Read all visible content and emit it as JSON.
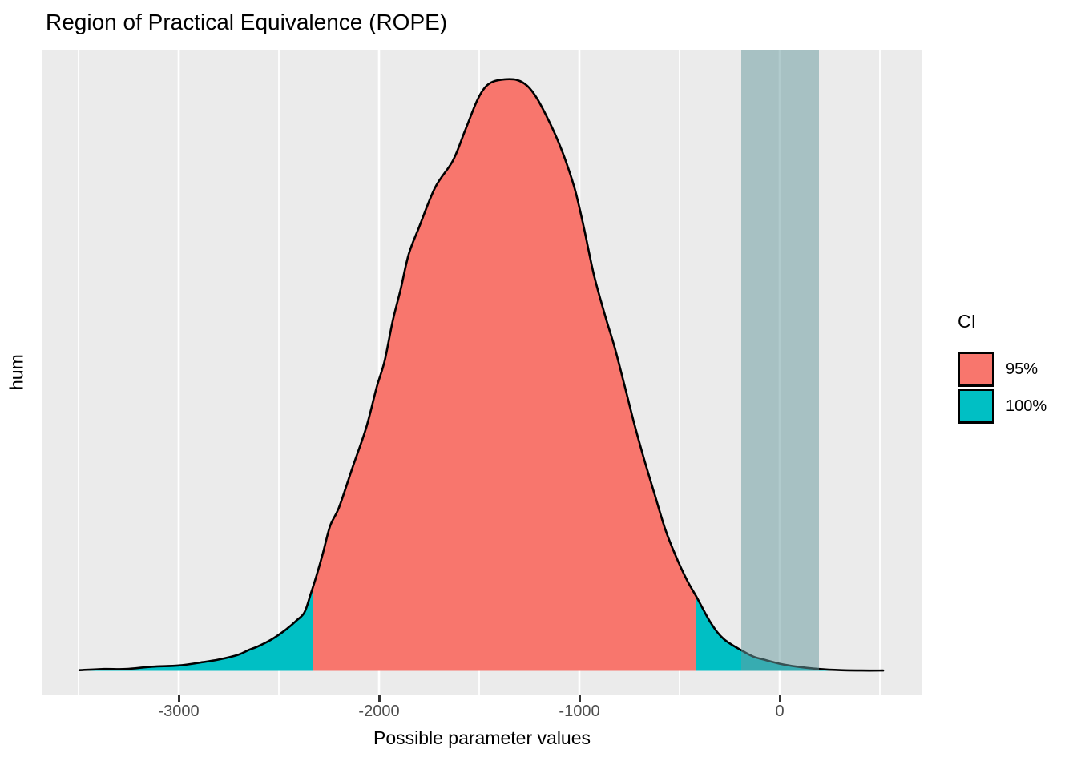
{
  "figure": {
    "background": "#FFFFFF"
  },
  "axis": {
    "tick_color": "#333333",
    "tick_label_color": "#4D4D4D"
  },
  "chart_data": {
    "type": "density",
    "title": "Region of Practical Equivalence (ROPE)",
    "xlabel": "Possible parameter values",
    "ylabel": "hum",
    "x_ticks": [
      -3000,
      -2000,
      -1000,
      0
    ],
    "x_minor_ticks": [
      -3500,
      -2500,
      -1500,
      -500,
      500
    ],
    "xlim": [
      -3684,
      712
    ],
    "density_ylim": [
      -0.04,
      1.05
    ],
    "grid": "vertical white gridlines only, gray panel background",
    "panel_bg": "#EBEBEB",
    "gridline_color": "#FFFFFF",
    "curve_color": "#000000",
    "ci_95_range": [
      -2332,
      -416
    ],
    "ci_100_range": [
      -3496,
      516
    ],
    "rope": {
      "from": -192,
      "to": 196,
      "fill": "#699BA0",
      "opacity": 0.52
    },
    "legend": {
      "title": "CI",
      "position": "right",
      "entries": [
        {
          "label": "95%",
          "color": "#F8766D"
        },
        {
          "label": "100%",
          "color": "#00BFC4"
        }
      ]
    },
    "series": [
      {
        "name": "posterior density (normalized, peak = 1)",
        "points": [
          [
            -3496,
            0.001
          ],
          [
            -3372,
            0.003
          ],
          [
            -3264,
            0.003
          ],
          [
            -3132,
            0.007
          ],
          [
            -3000,
            0.009
          ],
          [
            -2892,
            0.014
          ],
          [
            -2800,
            0.019
          ],
          [
            -2704,
            0.027
          ],
          [
            -2652,
            0.035
          ],
          [
            -2600,
            0.042
          ],
          [
            -2532,
            0.054
          ],
          [
            -2464,
            0.07
          ],
          [
            -2412,
            0.085
          ],
          [
            -2372,
            0.099
          ],
          [
            -2340,
            0.131
          ],
          [
            -2312,
            0.161
          ],
          [
            -2280,
            0.199
          ],
          [
            -2244,
            0.245
          ],
          [
            -2200,
            0.276
          ],
          [
            -2132,
            0.344
          ],
          [
            -2064,
            0.411
          ],
          [
            -2012,
            0.479
          ],
          [
            -1972,
            0.524
          ],
          [
            -1932,
            0.591
          ],
          [
            -1892,
            0.645
          ],
          [
            -1852,
            0.704
          ],
          [
            -1800,
            0.75
          ],
          [
            -1720,
            0.817
          ],
          [
            -1632,
            0.862
          ],
          [
            -1572,
            0.912
          ],
          [
            -1512,
            0.963
          ],
          [
            -1472,
            0.986
          ],
          [
            -1432,
            0.996
          ],
          [
            -1372,
            1.0
          ],
          [
            -1312,
            0.999
          ],
          [
            -1260,
            0.989
          ],
          [
            -1212,
            0.968
          ],
          [
            -1160,
            0.935
          ],
          [
            -1112,
            0.9
          ],
          [
            -1064,
            0.858
          ],
          [
            -1020,
            0.811
          ],
          [
            -976,
            0.747
          ],
          [
            -928,
            0.67
          ],
          [
            -872,
            0.601
          ],
          [
            -824,
            0.547
          ],
          [
            -772,
            0.479
          ],
          [
            -724,
            0.415
          ],
          [
            -672,
            0.352
          ],
          [
            -624,
            0.298
          ],
          [
            -572,
            0.24
          ],
          [
            -520,
            0.195
          ],
          [
            -464,
            0.154
          ],
          [
            -412,
            0.123
          ],
          [
            -344,
            0.081
          ],
          [
            -280,
            0.054
          ],
          [
            -188,
            0.034
          ],
          [
            -132,
            0.024
          ],
          [
            -80,
            0.019
          ],
          [
            0,
            0.012
          ],
          [
            88,
            0.007
          ],
          [
            196,
            0.003
          ],
          [
            308,
            0.001
          ],
          [
            408,
            0.0005
          ],
          [
            516,
            0.0005
          ]
        ]
      }
    ]
  }
}
